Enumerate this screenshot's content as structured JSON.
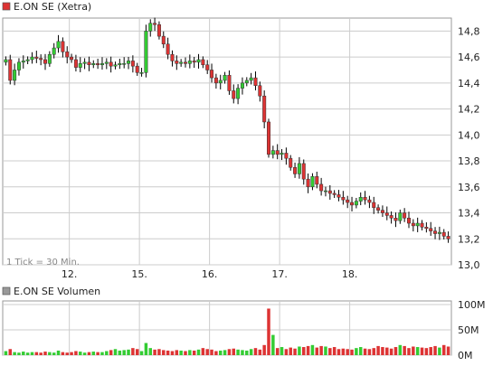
{
  "chart_data": [
    {
      "type": "candlestick",
      "legend": "E.ON SE (Xetra)",
      "note": "1 Tick = 30 Min.",
      "x_tick_labels": [
        "12.",
        "15.",
        "16.",
        "17.",
        "18."
      ],
      "x_tick_index": [
        15,
        31,
        47,
        63,
        79
      ],
      "ylim": [
        13.0,
        14.9
      ],
      "y_ticks": [
        13.0,
        13.2,
        13.4,
        13.6,
        13.8,
        14.0,
        14.2,
        14.4,
        14.6,
        14.8
      ],
      "y_tick_labels": [
        "13,0",
        "13,2",
        "13,4",
        "13,6",
        "13,8",
        "14,0",
        "14,2",
        "14,4",
        "14,6",
        "14,8"
      ],
      "grid": true,
      "colors": {
        "up": "#33cc33",
        "down": "#dd3333",
        "wick": "#000000",
        "frame": "#999999",
        "grid": "#cccccc"
      },
      "close": [
        14.58,
        14.42,
        14.5,
        14.56,
        14.57,
        14.58,
        14.6,
        14.59,
        14.58,
        14.55,
        14.62,
        14.67,
        14.72,
        14.64,
        14.6,
        14.58,
        14.52,
        14.55,
        14.56,
        14.54,
        14.55,
        14.54,
        14.55,
        14.56,
        14.53,
        14.54,
        14.55,
        14.55,
        14.57,
        14.53,
        14.48,
        14.48,
        14.8,
        14.86,
        14.85,
        14.76,
        14.7,
        14.62,
        14.57,
        14.55,
        14.56,
        14.55,
        14.57,
        14.56,
        14.58,
        14.54,
        14.5,
        14.44,
        14.4,
        14.42,
        14.46,
        14.34,
        14.28,
        14.36,
        14.4,
        14.42,
        14.44,
        14.38,
        14.3,
        14.1,
        13.85,
        13.88,
        13.85,
        13.86,
        13.82,
        13.75,
        13.7,
        13.78,
        13.66,
        13.6,
        13.68,
        13.62,
        13.57,
        13.57,
        13.55,
        13.54,
        13.52,
        13.5,
        13.48,
        13.46,
        13.49,
        13.52,
        13.5,
        13.48,
        13.44,
        13.42,
        13.4,
        13.38,
        13.36,
        13.34,
        13.4,
        13.36,
        13.32,
        13.3,
        13.32,
        13.29,
        13.28,
        13.26,
        13.24,
        13.25,
        13.22,
        13.2
      ],
      "volume_legend": "E.ON SE Volumen",
      "volume_ylim": [
        0,
        100
      ],
      "volume_ticks": [
        0,
        50,
        100
      ],
      "volume_tick_labels": [
        "0M",
        "50M",
        "100M"
      ],
      "volume_unit": "M",
      "volume": [
        8,
        12,
        6,
        5,
        7,
        5,
        6,
        6,
        5,
        7,
        6,
        5,
        9,
        6,
        5,
        6,
        8,
        7,
        5,
        6,
        7,
        6,
        6,
        8,
        10,
        12,
        9,
        10,
        11,
        14,
        12,
        8,
        24,
        14,
        11,
        12,
        10,
        9,
        8,
        10,
        9,
        8,
        10,
        9,
        11,
        14,
        12,
        11,
        8,
        9,
        10,
        12,
        13,
        11,
        10,
        9,
        12,
        14,
        11,
        20,
        92,
        40,
        14,
        16,
        12,
        15,
        13,
        17,
        16,
        18,
        20,
        15,
        18,
        17,
        14,
        16,
        12,
        13,
        12,
        11,
        14,
        16,
        13,
        12,
        14,
        18,
        16,
        15,
        13,
        16,
        20,
        18,
        14,
        17,
        16,
        15,
        14,
        16,
        18,
        15,
        20,
        17
      ]
    }
  ]
}
